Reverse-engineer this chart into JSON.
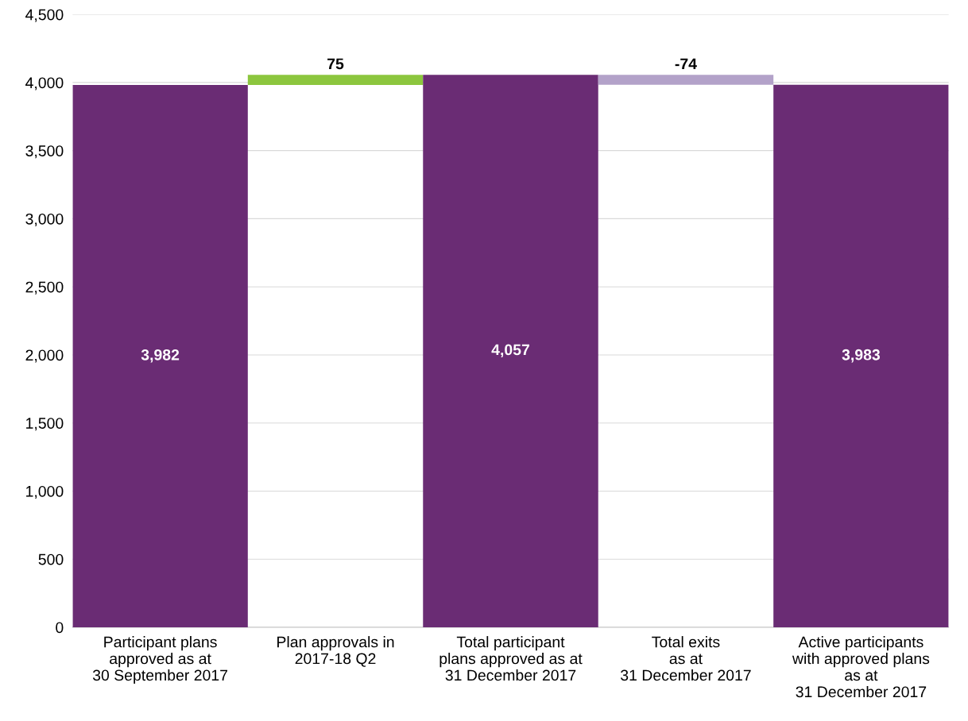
{
  "chart_data": {
    "type": "bar",
    "categories": [
      "Participant plans\napproved as at\n30 September 2017",
      "Plan approvals in\n2017-18 Q2",
      "Total participant\nplans approved as at\n31 December 2017",
      "Total exits\nas at\n31 December 2017",
      "Active participants\nwith approved plans\nas at\n31 December 2017"
    ],
    "values": [
      3982,
      75,
      4057,
      -74,
      3983
    ],
    "base": [
      0,
      3982,
      0,
      4057,
      0
    ],
    "colors": [
      "#6a2c74",
      "#8cc63e",
      "#6a2c74",
      "#b3a2c9",
      "#6a2c74"
    ],
    "value_labels": [
      "3,982",
      "75",
      "4,057",
      "-74",
      "3,983"
    ],
    "ylim": [
      0,
      4500
    ],
    "yticks": [
      {
        "value": 0,
        "label": "0"
      },
      {
        "value": 500,
        "label": "500"
      },
      {
        "value": 1000,
        "label": "1,000"
      },
      {
        "value": 1500,
        "label": "1,500"
      },
      {
        "value": 2000,
        "label": "2,000"
      },
      {
        "value": 2500,
        "label": "2,500"
      },
      {
        "value": 3000,
        "label": "3,000"
      },
      {
        "value": 3500,
        "label": "3,500"
      },
      {
        "value": 4000,
        "label": "4,000"
      },
      {
        "value": 4500,
        "label": "4,500"
      }
    ],
    "grid": "y"
  }
}
